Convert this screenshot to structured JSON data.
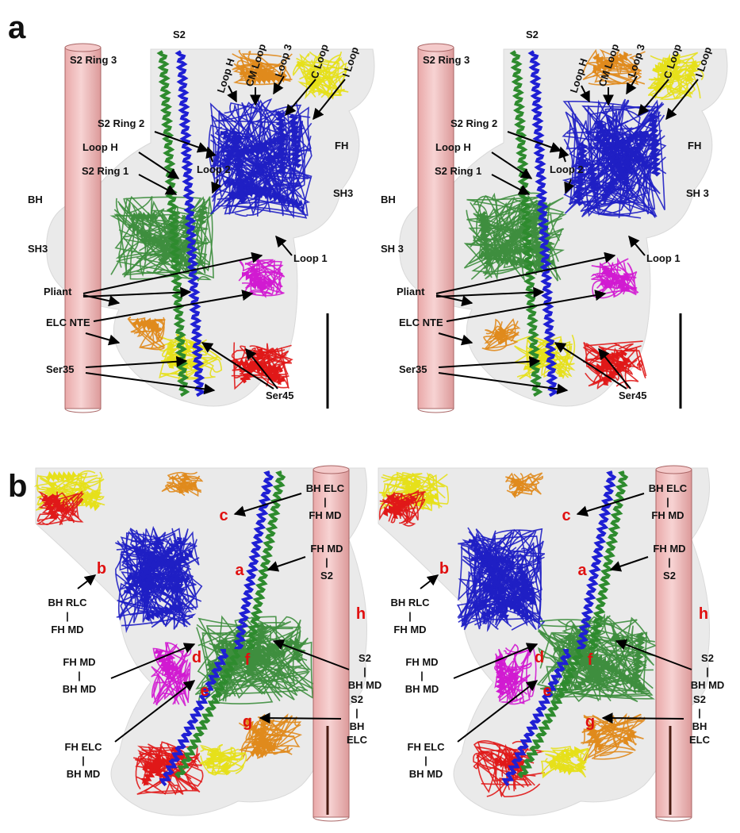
{
  "panels": [
    {
      "letter": "a",
      "views": [
        {
          "labels": [
            {
              "lines": [
                "S2"
              ]
            },
            {
              "lines": [
                "S2 Ring 3"
              ]
            },
            {
              "lines": [
                "Loop H"
              ]
            },
            {
              "lines": [
                "CM Loop"
              ]
            },
            {
              "lines": [
                "Loop 3"
              ]
            },
            {
              "lines": [
                "C Loop"
              ]
            },
            {
              "lines": [
                "I Loop"
              ]
            },
            {
              "lines": [
                "S2 Ring 2"
              ]
            },
            {
              "lines": [
                "Loop H"
              ]
            },
            {
              "lines": [
                "S2 Ring 1"
              ]
            },
            {
              "lines": [
                "Loop 2"
              ]
            },
            {
              "lines": [
                "FH"
              ]
            },
            {
              "lines": [
                "SH3"
              ]
            },
            {
              "lines": [
                "BH"
              ]
            },
            {
              "lines": [
                "SH3"
              ]
            },
            {
              "lines": [
                "Loop 1"
              ]
            },
            {
              "lines": [
                "Pliant"
              ]
            },
            {
              "lines": [
                "ELC NTE"
              ]
            },
            {
              "lines": [
                "Ser35"
              ]
            },
            {
              "lines": [
                "Ser45"
              ]
            }
          ]
        },
        {
          "labels": [
            {
              "lines": [
                "S2"
              ]
            },
            {
              "lines": [
                "S2 Ring 3"
              ]
            },
            {
              "lines": [
                "Loop H"
              ]
            },
            {
              "lines": [
                "CM Loop"
              ]
            },
            {
              "lines": [
                "Loop 3"
              ]
            },
            {
              "lines": [
                "C Loop"
              ]
            },
            {
              "lines": [
                "I Loop"
              ]
            },
            {
              "lines": [
                "S2 Ring 2"
              ]
            },
            {
              "lines": [
                "Loop H"
              ]
            },
            {
              "lines": [
                "S2 Ring 1"
              ]
            },
            {
              "lines": [
                "Loop 2"
              ]
            },
            {
              "lines": [
                "FH"
              ]
            },
            {
              "lines": [
                "SH 3"
              ]
            },
            {
              "lines": [
                "BH"
              ]
            },
            {
              "lines": [
                "SH 3"
              ]
            },
            {
              "lines": [
                "Loop 1"
              ]
            },
            {
              "lines": [
                "Pliant"
              ]
            },
            {
              "lines": [
                "ELC NTE"
              ]
            },
            {
              "lines": [
                "Ser35"
              ]
            },
            {
              "lines": [
                "Ser45"
              ]
            }
          ]
        }
      ]
    },
    {
      "letter": "b",
      "views": [
        {
          "labels": [
            {
              "lines": [
                "c"
              ]
            },
            {
              "lines": [
                "BH ELC",
                "|",
                "FH MD"
              ]
            },
            {
              "lines": [
                "FH MD",
                "|",
                "S2"
              ]
            },
            {
              "lines": [
                "a"
              ]
            },
            {
              "lines": [
                "b"
              ]
            },
            {
              "lines": [
                "BH RLC",
                "|",
                "FH MD"
              ]
            },
            {
              "lines": [
                "h"
              ]
            },
            {
              "lines": [
                "d"
              ]
            },
            {
              "lines": [
                "f"
              ]
            },
            {
              "lines": [
                "S2",
                "|",
                "BH MD"
              ]
            },
            {
              "lines": [
                "FH MD",
                "|",
                "BH MD"
              ]
            },
            {
              "lines": [
                "e"
              ]
            },
            {
              "lines": [
                "g"
              ]
            },
            {
              "lines": [
                "S2",
                "|",
                "BH",
                "ELC"
              ]
            },
            {
              "lines": [
                "FH ELC",
                "|",
                "BH MD"
              ]
            }
          ]
        },
        {
          "labels": [
            {
              "lines": [
                "c"
              ]
            },
            {
              "lines": [
                "BH ELC",
                "|",
                "FH MD"
              ]
            },
            {
              "lines": [
                "FH MD",
                "|",
                "S2"
              ]
            },
            {
              "lines": [
                "a"
              ]
            },
            {
              "lines": [
                "b"
              ]
            },
            {
              "lines": [
                "BH RLC",
                "|",
                "FH MD"
              ]
            },
            {
              "lines": [
                "h"
              ]
            },
            {
              "lines": [
                "d"
              ]
            },
            {
              "lines": [
                "f"
              ]
            },
            {
              "lines": [
                "S2",
                "|",
                "BH MD"
              ]
            },
            {
              "lines": [
                "FH MD",
                "|",
                "BH MD"
              ]
            },
            {
              "lines": [
                "e"
              ]
            },
            {
              "lines": [
                "g"
              ]
            },
            {
              "lines": [
                "S2",
                "|",
                "BH",
                "ELC"
              ]
            },
            {
              "lines": [
                "FH ELC",
                "|",
                "BH MD"
              ]
            }
          ]
        }
      ]
    }
  ]
}
